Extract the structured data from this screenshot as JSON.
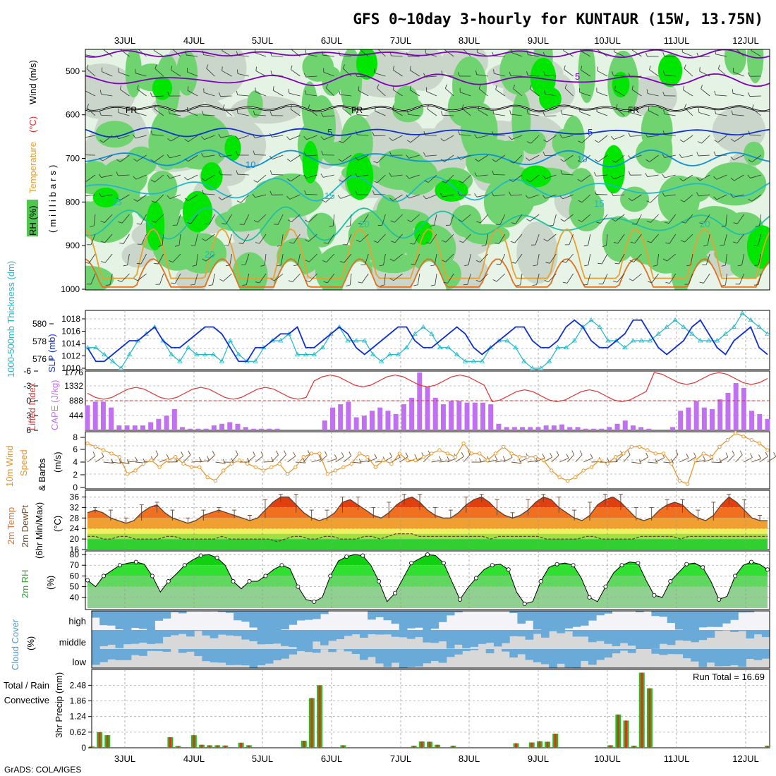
{
  "title": "GFS 0~10day 3-hourly for KUNTAUR (15W, 13.75N)",
  "footer": "GrADS: COLA/IGES",
  "dates": [
    "3JUL",
    "4JUL",
    "5JUL",
    "6JUL",
    "7JUL",
    "8JUL",
    "9JUL",
    "10JUL",
    "11JUL",
    "12JUL"
  ],
  "colors": {
    "rh_light": "#e4f3e4",
    "rh_mid": "#c9d6c9",
    "rh_green": "#6fd46f",
    "rh_bright": "#00e600",
    "blue_slp": "#1030d0",
    "cyan_thk": "#20b8c8",
    "lifted": "#e03030",
    "cape": "#c070f0",
    "wind": "#e89020",
    "barb": "#705030",
    "rh2m": "#20d020",
    "cloud": "#6aaad8",
    "cloud_bg": "#d8d8d8",
    "precip_total": "#20c020",
    "precip_conv": "#e03020",
    "purple": "#8000c0"
  },
  "labels": {
    "rh_box": "RH (%)",
    "temp_word": "Temperature",
    "temp_unit": "(°C)",
    "wind_word": "Wind (m/s)",
    "millibars": "(millibars)",
    "thk": "1000-500mb Thickness (dm)",
    "slp": "SLP (mb)",
    "lifted": "Lifted Index",
    "cape": "CAPE (J/kg)",
    "wind10": "10m Wind",
    "speed": "Speed",
    "barbs": "& Barbs",
    "ms": "(m/s)",
    "t2m_a": "2m Temp",
    "t2m_b": "2m DewPt",
    "t2m_c": "(6hr Min/Max)",
    "degc": "(°C)",
    "rh2m": "2m RH",
    "pct": "(%)",
    "cloud_a": "Cloud Cover",
    "cloud_b": "(%)",
    "cloud_high": "high",
    "cloud_mid": "middle",
    "cloud_low": "low",
    "precip_a": "Total / Rain",
    "precip_b": "Convective",
    "precip_c": "3hr Precip (mm)",
    "run_total": "Run Total = 16.69",
    "contour_fr": "FR",
    "contour_5": "5",
    "contour_10": "10",
    "contour_15": "15",
    "contour_20": "20"
  },
  "axes": {
    "pressure_ticks": [
      "500",
      "600",
      "700",
      "800",
      "900",
      "1000"
    ],
    "thk_ticks": [
      "580",
      "578",
      "576"
    ],
    "slp_ticks": [
      "1018",
      "1016",
      "1014",
      "1012",
      "1010"
    ],
    "li_ticks": [
      "-6",
      "-3",
      "0",
      "3",
      "6"
    ],
    "cape_ticks": [
      "1776",
      "1332",
      "888",
      "444"
    ],
    "wind_ticks": [
      "8",
      "6",
      "4",
      "2",
      "0"
    ],
    "temp_ticks": [
      "36",
      "32",
      "28",
      "24",
      "20",
      "16"
    ],
    "rh_ticks": [
      "80",
      "70",
      "60",
      "50",
      "40"
    ],
    "precip_ticks": [
      "2.48",
      "1.86",
      "1.24",
      "0.62",
      "0"
    ]
  },
  "chart_data": [
    {
      "type": "heatmap",
      "panel": "pressure-height RH / temperature / wind",
      "y_range_mb": [
        450,
        1000
      ],
      "contours_temp_c": [
        "FR",
        "5",
        "10",
        "15",
        "20"
      ]
    },
    {
      "type": "line",
      "panel": "thickness and SLP",
      "series": [
        {
          "name": "1000-500mb Thickness (dm)",
          "values": [
            1013,
            1013,
            1012,
            1011,
            1010,
            1012,
            1014,
            1015,
            1016,
            1014,
            1012,
            1011,
            1013,
            1012,
            1012,
            1012,
            1011,
            1014,
            1012,
            1011,
            1011,
            1013,
            1014,
            1014,
            1015,
            1012,
            1012,
            1012,
            1013,
            1015,
            1016,
            1014,
            1014,
            1014,
            1012,
            1011,
            1012,
            1012,
            1013,
            1015,
            1016,
            1015,
            1013,
            1013,
            1012,
            1011,
            1011,
            1011,
            1013,
            1014,
            1014,
            1013,
            1011,
            1010,
            1010,
            1011,
            1013,
            1013,
            1014,
            1016,
            1017,
            1016,
            1014,
            1014,
            1013,
            1014,
            1014,
            1014,
            1015,
            1016,
            1017,
            1016,
            1015,
            1014,
            1014,
            1014,
            1015,
            1016,
            1018,
            1017,
            1016,
            1015
          ],
          "ylim_slp": [
            1010,
            1018
          ]
        },
        {
          "name": "SLP (mb)",
          "values": [
            1013,
            1011,
            1011,
            1012,
            1013,
            1014,
            1014,
            1015,
            1016,
            1014,
            1013,
            1013,
            1014,
            1015,
            1016,
            1016,
            1015,
            1013,
            1011,
            1011,
            1013,
            1013,
            1014,
            1015,
            1015,
            1016,
            1013,
            1013,
            1014,
            1015,
            1016,
            1015,
            1013,
            1012,
            1013,
            1014,
            1015,
            1016,
            1016,
            1014,
            1013,
            1013,
            1014,
            1015,
            1016,
            1015,
            1013,
            1012,
            1013,
            1014,
            1015,
            1016,
            1016,
            1014,
            1013,
            1013,
            1014,
            1016,
            1017,
            1016,
            1014,
            1013,
            1013,
            1014,
            1015,
            1017,
            1017,
            1015,
            1013,
            1012,
            1013,
            1014,
            1016,
            1017,
            1015,
            1013,
            1012,
            1014,
            1015,
            1016,
            1013,
            1012
          ]
        }
      ]
    },
    {
      "type": "bar",
      "panel": "Lifted index and CAPE",
      "cape_jkg": [
        770,
        880,
        880,
        700,
        150,
        150,
        150,
        150,
        250,
        350,
        450,
        650,
        100,
        50,
        50,
        50,
        150,
        200,
        250,
        200,
        100,
        50,
        50,
        50,
        50,
        0,
        0,
        0,
        0,
        0,
        300,
        700,
        800,
        880,
        400,
        450,
        600,
        700,
        600,
        500,
        800,
        1000,
        1776,
        1350,
        1000,
        800,
        900,
        900,
        850,
        850,
        850,
        800,
        200,
        100,
        100,
        100,
        100,
        100,
        150,
        150,
        180,
        100,
        100,
        50,
        50,
        50,
        100,
        200,
        300,
        150,
        100,
        50,
        0,
        0,
        100,
        600,
        700,
        900,
        700,
        650,
        950,
        1150,
        1450,
        1300,
        600,
        500,
        350
      ]
    },
    {
      "type": "line",
      "panel": "10m Wind Speed",
      "values": [
        6.5,
        6,
        5.5,
        5,
        4.5,
        2,
        2.5,
        3.5,
        4,
        3,
        4,
        4.5,
        3.5,
        3,
        3,
        1.5,
        1,
        2.5,
        3.5,
        4,
        3.5,
        3,
        2.5,
        3,
        3.5,
        2,
        3,
        4.5,
        5,
        5,
        2,
        2.5,
        3,
        3.5,
        5,
        4.5,
        3,
        4,
        3.5,
        5,
        4,
        4,
        4.5,
        5,
        5.5,
        5,
        4.5,
        6.5,
        5,
        5,
        4,
        5,
        6,
        5,
        4.5,
        4.5,
        4.5,
        4,
        2.5,
        1.5,
        1,
        1.5,
        2.5,
        3,
        4,
        3.5,
        4.5,
        5,
        6,
        6,
        5.5,
        5,
        5,
        3.5,
        1,
        0.5,
        4,
        5,
        4.5,
        6,
        7,
        8,
        7.5,
        7,
        6.5,
        5.5
      ],
      "ylim": [
        0,
        8
      ]
    },
    {
      "type": "area",
      "panel": "2m Temp and DewPt",
      "temp": [
        30,
        31,
        30,
        28,
        27,
        26,
        27,
        30,
        32,
        33,
        30,
        28,
        27,
        26,
        27,
        29,
        30,
        31,
        30,
        29,
        28,
        27,
        28,
        31,
        34,
        36,
        36,
        33,
        30,
        28,
        27,
        28,
        30,
        34,
        35,
        33,
        31,
        29,
        28,
        30,
        33,
        35,
        36,
        34,
        31,
        29,
        28,
        28,
        30,
        33,
        35,
        36,
        34,
        31,
        29,
        28,
        29,
        31,
        34,
        36,
        35,
        32,
        30,
        28,
        27,
        29,
        33,
        35,
        36,
        34,
        31,
        28,
        27,
        28,
        31,
        33,
        34,
        33,
        30,
        28,
        27,
        29,
        33,
        36,
        34,
        31,
        28,
        27,
        27
      ],
      "dewpt": [
        21,
        21,
        20,
        20,
        21,
        21,
        20,
        20,
        20,
        20,
        21,
        21,
        20,
        20,
        20,
        20,
        20,
        21,
        20,
        20,
        20,
        20,
        20,
        20,
        19,
        20,
        21,
        21,
        20,
        20,
        21,
        21,
        20,
        20,
        20,
        21,
        21,
        20,
        21,
        22,
        22,
        22,
        21,
        21,
        21,
        21,
        21,
        21,
        21,
        21,
        21,
        20,
        21,
        21,
        21,
        21,
        21,
        21,
        20,
        20,
        20,
        20,
        20,
        21,
        21,
        20,
        20,
        20,
        20,
        20,
        21,
        21,
        21,
        21,
        21,
        20,
        21,
        21,
        21,
        21,
        21,
        21,
        21,
        21,
        21,
        21,
        21
      ],
      "ylim": [
        16,
        38
      ]
    },
    {
      "type": "area",
      "panel": "2m RH",
      "values": [
        56,
        50,
        60,
        65,
        70,
        72,
        73,
        71,
        60,
        45,
        55,
        62,
        70,
        75,
        79,
        80,
        77,
        70,
        55,
        48,
        55,
        55,
        60,
        66,
        70,
        67,
        50,
        38,
        36,
        40,
        60,
        74,
        78,
        80,
        79,
        70,
        55,
        36,
        44,
        58,
        72,
        76,
        80,
        79,
        72,
        55,
        38,
        49,
        58,
        66,
        70,
        71,
        66,
        45,
        34,
        36,
        55,
        68,
        71,
        72,
        70,
        58,
        40,
        36,
        50,
        63,
        70,
        73,
        72,
        56,
        42,
        40,
        55,
        63,
        71,
        72,
        68,
        55,
        38,
        41,
        60,
        70,
        73,
        71,
        66
      ],
      "ylim": [
        30,
        82
      ]
    },
    {
      "type": "heatmap",
      "panel": "Cloud Cover",
      "levels": [
        "high",
        "middle",
        "low"
      ]
    },
    {
      "type": "bar",
      "panel": "3hr Precip",
      "run_total": 16.69,
      "total_mm": [
        0.05,
        0.62,
        0.5,
        0,
        0,
        0,
        0,
        0,
        0,
        0,
        0.42,
        0.07,
        0,
        0.5,
        0.12,
        0.1,
        0.1,
        0.09,
        0,
        0.2,
        0.1,
        0,
        0,
        0,
        0,
        0,
        0,
        0.28,
        1.97,
        2.48,
        0,
        0,
        0.1,
        0,
        0,
        0,
        0,
        0,
        0,
        0,
        0,
        0.08,
        0.25,
        0.24,
        0.12,
        0,
        0.08,
        0,
        0,
        0,
        0,
        0,
        0,
        0,
        0.18,
        0,
        0.21,
        0.26,
        0.24,
        0.56,
        0,
        0,
        0,
        0,
        0,
        0,
        0.1,
        1.32,
        1.08,
        0.08,
        2.98,
        2.36,
        0,
        0,
        0,
        0,
        0,
        0,
        0,
        0,
        0,
        0,
        0,
        0,
        0,
        0,
        0.08
      ],
      "ylim": [
        0,
        3.05
      ]
    }
  ]
}
